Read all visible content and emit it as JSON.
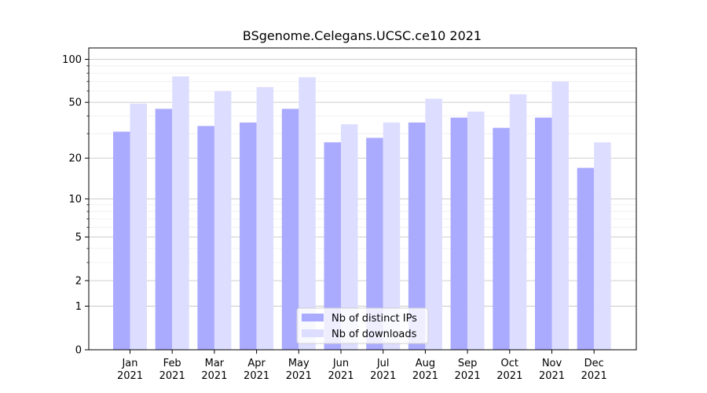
{
  "chart_data": {
    "type": "bar",
    "title": "BSgenome.Celegans.UCSC.ce10 2021",
    "xlabel": "",
    "ylabel": "",
    "yscale": "log(1+y)",
    "ylim": [
      0,
      120
    ],
    "yticks": [
      0,
      1,
      2,
      5,
      10,
      20,
      50,
      100
    ],
    "grid": true,
    "legend_position": "bottom-center",
    "categories": [
      [
        "Jan",
        "2021"
      ],
      [
        "Feb",
        "2021"
      ],
      [
        "Mar",
        "2021"
      ],
      [
        "Apr",
        "2021"
      ],
      [
        "May",
        "2021"
      ],
      [
        "Jun",
        "2021"
      ],
      [
        "Jul",
        "2021"
      ],
      [
        "Aug",
        "2021"
      ],
      [
        "Sep",
        "2021"
      ],
      [
        "Oct",
        "2021"
      ],
      [
        "Nov",
        "2021"
      ],
      [
        "Dec",
        "2021"
      ]
    ],
    "series": [
      {
        "name": "Nb of distinct IPs",
        "color": "#aaaaff",
        "values": [
          31,
          45,
          34,
          36,
          45,
          26,
          28,
          36,
          39,
          33,
          39,
          17
        ]
      },
      {
        "name": "Nb of downloads",
        "color": "#ddddff",
        "values": [
          49,
          76,
          60,
          64,
          75,
          35,
          36,
          53,
          43,
          57,
          70,
          26
        ]
      }
    ]
  }
}
